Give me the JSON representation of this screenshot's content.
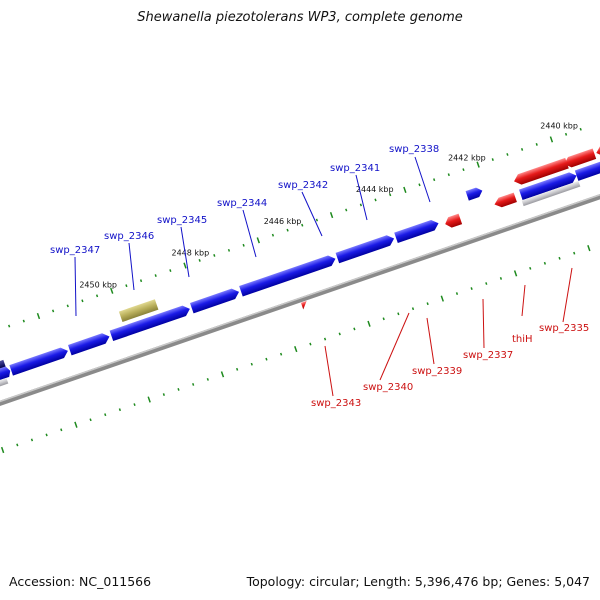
{
  "title": "Shewanella piezotolerans WP3, complete genome",
  "footer": {
    "accession_label": "Accession:",
    "accession": "NC_011566",
    "topology_label": "Topology:",
    "topology": "circular",
    "length_label": "Length:",
    "length": "5,396,476 bp",
    "genes_label": "Genes:",
    "genes": "5,047"
  },
  "scale_labels": [
    "2440 kbp",
    "2442 kbp",
    "2444 kbp",
    "2446 kbp",
    "2448 kbp",
    "2450 kbp"
  ],
  "genes_top": [
    "swp_2338",
    "swp_2341",
    "swp_2342",
    "swp_2344",
    "swp_2345",
    "swp_2346",
    "swp_2347"
  ],
  "genes_bottom": [
    "swp_2335",
    "thiH",
    "swp_2337",
    "swp_2339",
    "swp_2340",
    "swp_2343"
  ],
  "colors": {
    "forward": "#1a1ae6",
    "reverse": "#e61a1a",
    "other": "#b8ae5a",
    "backbone": "#8a8a8a",
    "ticks": "#1e8a1e",
    "label_blue": "#1212c8",
    "label_red": "#cc1111"
  }
}
